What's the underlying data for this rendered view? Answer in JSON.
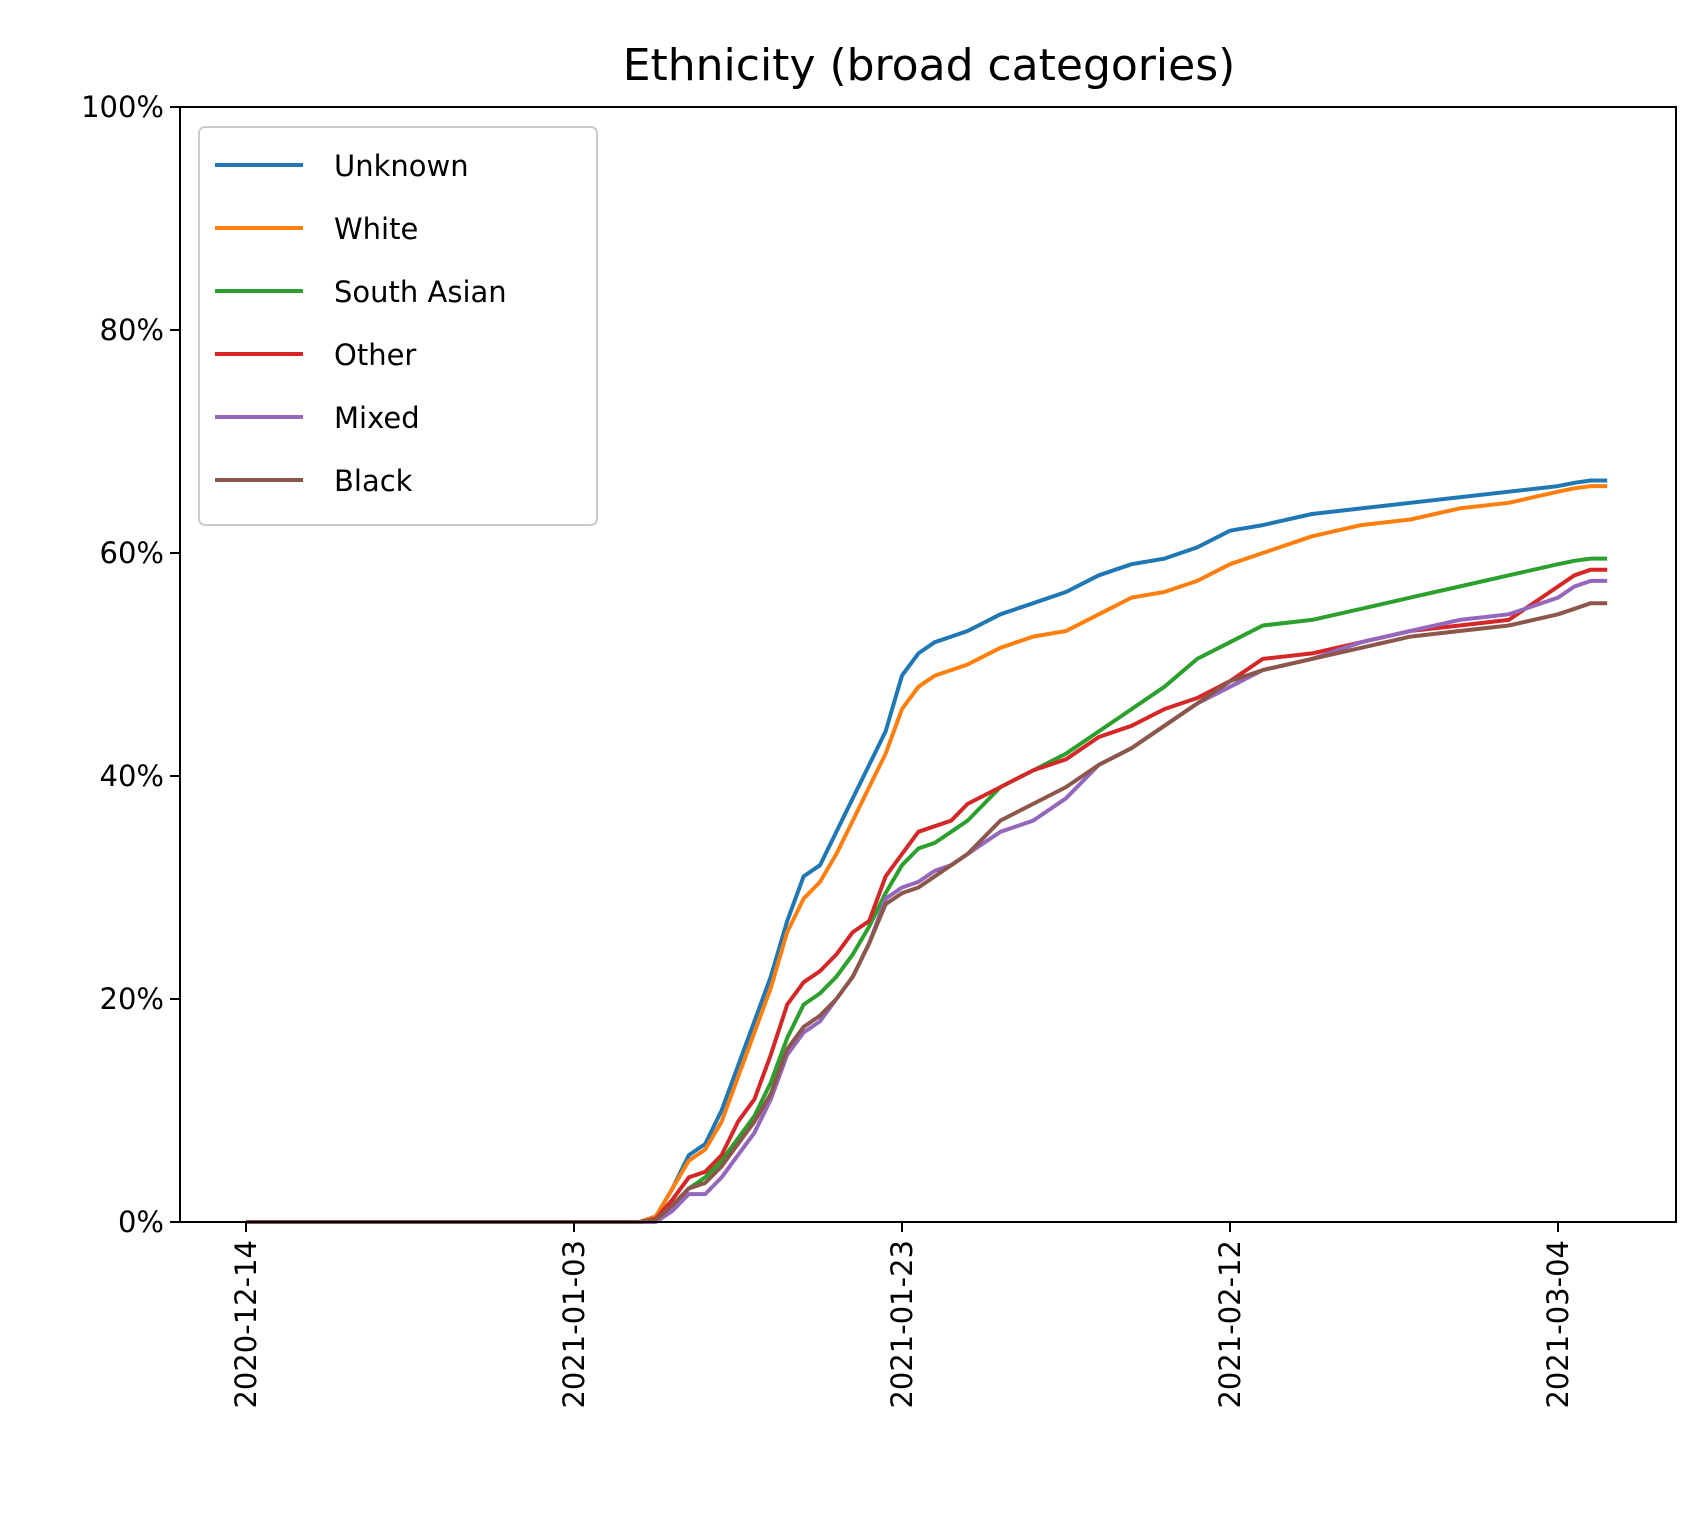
{
  "chart_data": {
    "type": "line",
    "title": "Ethnicity (broad categories)",
    "xlabel": "",
    "ylabel": "",
    "x_axis": {
      "type": "date",
      "range": [
        "2020-12-14",
        "2021-03-14"
      ],
      "tick_labels": [
        "2020-12-14",
        "2021-01-03",
        "2021-01-23",
        "2021-02-12",
        "2021-03-04"
      ]
    },
    "y_axis": {
      "range": [
        0,
        100
      ],
      "unit": "%",
      "tick_labels": [
        "0%",
        "20%",
        "40%",
        "60%",
        "80%",
        "100%"
      ]
    },
    "grid": false,
    "legend": {
      "placement": "top-left"
    },
    "x": [
      "2020-12-14",
      "2021-01-07",
      "2021-01-08",
      "2021-01-09",
      "2021-01-10",
      "2021-01-11",
      "2021-01-12",
      "2021-01-13",
      "2021-01-14",
      "2021-01-15",
      "2021-01-16",
      "2021-01-17",
      "2021-01-18",
      "2021-01-19",
      "2021-01-20",
      "2021-01-21",
      "2021-01-22",
      "2021-01-23",
      "2021-01-24",
      "2021-01-25",
      "2021-01-26",
      "2021-01-27",
      "2021-01-29",
      "2021-01-31",
      "2021-02-02",
      "2021-02-04",
      "2021-02-06",
      "2021-02-08",
      "2021-02-10",
      "2021-02-12",
      "2021-02-14",
      "2021-02-17",
      "2021-02-20",
      "2021-02-23",
      "2021-02-26",
      "2021-03-01",
      "2021-03-04",
      "2021-03-05",
      "2021-03-06",
      "2021-03-07"
    ],
    "series": [
      {
        "name": "Unknown",
        "color": "#1f77b4",
        "values": [
          0,
          0,
          0.5,
          3,
          6,
          7,
          10,
          14,
          18,
          22,
          27,
          31,
          32,
          35,
          38,
          41,
          44,
          49,
          51,
          52,
          52.5,
          53,
          54.5,
          55.5,
          56.5,
          58,
          59,
          59.5,
          60.5,
          62,
          62.5,
          63.5,
          64,
          64.5,
          65,
          65.5,
          66,
          66.3,
          66.5,
          66.5
        ]
      },
      {
        "name": "White",
        "color": "#ff7f0e",
        "values": [
          0,
          0,
          0.5,
          3,
          5.5,
          6.5,
          9,
          13,
          17,
          21,
          26,
          29,
          30.5,
          33,
          36,
          39,
          42,
          46,
          48,
          49,
          49.5,
          50,
          51.5,
          52.5,
          53,
          54.5,
          56,
          56.5,
          57.5,
          59,
          60,
          61.5,
          62.5,
          63,
          64,
          64.5,
          65.5,
          65.8,
          66,
          66
        ]
      },
      {
        "name": "South Asian",
        "color": "#2ca02c",
        "values": [
          0,
          0,
          0.3,
          1.5,
          3,
          4,
          5.5,
          7.5,
          9.5,
          12.5,
          16.5,
          19.5,
          20.5,
          22,
          24,
          26.5,
          29.5,
          32,
          33.5,
          34,
          35,
          36,
          39,
          40.5,
          42,
          44,
          46,
          48,
          50.5,
          52,
          53.5,
          54,
          55,
          56,
          57,
          58,
          59,
          59.3,
          59.5,
          59.5
        ]
      },
      {
        "name": "Other",
        "color": "#d62728",
        "values": [
          0,
          0,
          0.3,
          2,
          4,
          4.5,
          6,
          9,
          11,
          15,
          19.5,
          21.5,
          22.5,
          24,
          26,
          27,
          31,
          33,
          35,
          35.5,
          36,
          37.5,
          39,
          40.5,
          41.5,
          43.5,
          44.5,
          46,
          47,
          48.5,
          50.5,
          51,
          52,
          53,
          53.5,
          54,
          57,
          58,
          58.5,
          58.5
        ]
      },
      {
        "name": "Mixed",
        "color": "#9467bd",
        "values": [
          0,
          0,
          0,
          1,
          2.5,
          2.5,
          4,
          6,
          8,
          11,
          15,
          17,
          18,
          20,
          22,
          25,
          29,
          30,
          30.5,
          31.5,
          32,
          33,
          35,
          36,
          38,
          41,
          42.5,
          44.5,
          46.5,
          48,
          49.5,
          50.5,
          52,
          53,
          54,
          54.5,
          56,
          57,
          57.5,
          57.5
        ]
      },
      {
        "name": "Black",
        "color": "#8c564b",
        "values": [
          0,
          0,
          0.2,
          1.5,
          3,
          3.5,
          5,
          7,
          9,
          11.5,
          15.5,
          17.5,
          18.5,
          20,
          22,
          25,
          28.5,
          29.5,
          30,
          31,
          32,
          33,
          36,
          37.5,
          39,
          41,
          42.5,
          44.5,
          46.5,
          48.5,
          49.5,
          50.5,
          51.5,
          52.5,
          53,
          53.5,
          54.5,
          55,
          55.5,
          55.5
        ]
      }
    ]
  }
}
